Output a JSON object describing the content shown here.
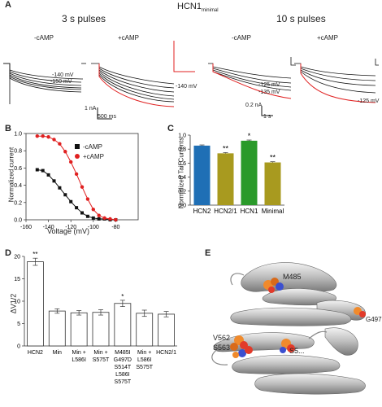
{
  "panel_a": {
    "label": "A",
    "title": "HCN1",
    "title_sub": "minimal",
    "left_header": "3 s pulses",
    "right_header": "10 s pulses",
    "cond_minus": "-cAMP",
    "cond_plus": "+cAMP",
    "ann_140": "-140 mV",
    "ann_150": "-150 mV",
    "ann_140b": "-140 mV",
    "ann_125": "-125 mV",
    "ann_135": "-135 mV",
    "ann_125b": "-125 mV",
    "scale_1na": "1 nA",
    "scale_500ms": "500 ms",
    "scale_02na": "0.2 nA",
    "scale_1s": "1 s"
  },
  "panel_b": {
    "label": "B",
    "ylabel": "Normalized current",
    "xlabel": "Voltage (mV)",
    "legend_minus": "-cAMP",
    "legend_plus": "+cAMP"
  },
  "panel_c": {
    "label": "C",
    "ylabel": "Normalized Tail Currents"
  },
  "panel_d": {
    "label": "D",
    "ylabel": "ΔV1/2",
    "star": "**"
  },
  "panel_e": {
    "label": "E",
    "res_m485": "M485",
    "res_g497": "G497",
    "res_v562": "V562",
    "res_s563": "S563",
    "res_s5": "S5..."
  },
  "colors": {
    "minus": "#111111",
    "plus": "#e02020",
    "hcn2": "#1f6fb5",
    "olive": "#a89a1f",
    "hcn1": "#2a9a2a"
  },
  "chart_data": [
    {
      "type": "line",
      "series": [
        {
          "name": "-cAMP",
          "x": [
            -150,
            -145,
            -140,
            -135,
            -130,
            -125,
            -120,
            -115,
            -110,
            -105,
            -100,
            -95,
            -90,
            -85,
            -80
          ],
          "y": [
            0.58,
            0.57,
            0.52,
            0.45,
            0.37,
            0.29,
            0.21,
            0.14,
            0.08,
            0.04,
            0.02,
            0.01,
            0.01,
            0.0,
            0.0
          ]
        },
        {
          "name": "+cAMP",
          "x": [
            -150,
            -145,
            -140,
            -135,
            -130,
            -125,
            -120,
            -115,
            -110,
            -105,
            -100,
            -95,
            -90,
            -85,
            -80
          ],
          "y": [
            0.97,
            0.97,
            0.96,
            0.93,
            0.88,
            0.79,
            0.67,
            0.53,
            0.38,
            0.24,
            0.12,
            0.05,
            0.02,
            0.01,
            0.0
          ]
        }
      ],
      "xlabel": "Voltage (mV)",
      "ylabel": "Normalized current",
      "xlim": [
        -160,
        -60
      ],
      "ylim": [
        0,
        1.0
      ],
      "xticks": [
        "-160",
        "-140",
        "-120",
        "-100",
        "-80"
      ],
      "yticks": [
        "0.0",
        "0.2",
        "0.4",
        "0.6",
        "0.8",
        "1.0"
      ]
    },
    {
      "type": "bar",
      "categories": [
        "HCN2",
        "HCN2/1",
        "HCN1",
        "Minimal"
      ],
      "values": [
        0.85,
        0.74,
        0.92,
        0.61
      ],
      "errors": [
        0.01,
        0.01,
        0.01,
        0.01
      ],
      "significance": [
        "",
        "**",
        "*",
        "**"
      ],
      "ylabel": "Normalized Tail Currents",
      "ylim": [
        0,
        1.0
      ],
      "yticks": [
        "0.0",
        "0.2",
        "0.4",
        "0.6",
        "0.8",
        "1.0"
      ]
    },
    {
      "type": "bar",
      "categories": [
        "HCN2",
        "Min",
        "Min + L586I",
        "Min + S575T",
        "M485I G497D S514T L586I S575T",
        "Min + L586I S575T",
        "HCN2/1"
      ],
      "category_lines": [
        [
          "HCN2"
        ],
        [
          "Min"
        ],
        [
          "Min +",
          "L586I"
        ],
        [
          "Min +",
          "S575T"
        ],
        [
          "M485I",
          "G497D",
          "S514T",
          "L586I",
          "S575T"
        ],
        [
          "Min +",
          "L586I",
          "S575T"
        ],
        [
          "HCN2/1"
        ]
      ],
      "values": [
        18.8,
        7.8,
        7.4,
        7.5,
        9.5,
        7.3,
        7.1
      ],
      "errors": [
        0.8,
        0.5,
        0.5,
        0.6,
        0.7,
        0.7,
        0.6
      ],
      "significance": [
        "**",
        "",
        "",
        "",
        "*",
        "",
        ""
      ],
      "ylabel": "ΔV1/2",
      "ylim": [
        0,
        20
      ],
      "yticks": [
        "0",
        "5",
        "10",
        "15",
        "20"
      ]
    }
  ]
}
